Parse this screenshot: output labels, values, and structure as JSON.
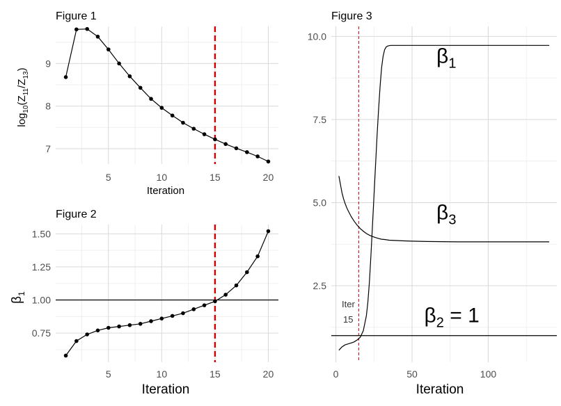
{
  "chart_data": [
    {
      "type": "line",
      "title": "Figure 1",
      "xlabel": "Iteration",
      "ylabel_parts": {
        "pre": "log",
        "sub1": "10",
        "mid": "(Z",
        "sub2": "11",
        "slash": "/Z",
        "sub3": "13",
        "post": ")"
      },
      "x": [
        1,
        2,
        3,
        4,
        5,
        6,
        7,
        8,
        9,
        10,
        11,
        12,
        13,
        14,
        15,
        16,
        17,
        18,
        19,
        20
      ],
      "y": [
        8.68,
        9.8,
        9.81,
        9.63,
        9.33,
        9.0,
        8.7,
        8.43,
        8.17,
        7.96,
        7.78,
        7.61,
        7.47,
        7.34,
        7.22,
        7.11,
        7.01,
        6.92,
        6.82,
        6.7
      ],
      "xlim": [
        0.05,
        20.95
      ],
      "ylim": [
        6.64,
        9.87
      ],
      "xticks": [
        5,
        10,
        15,
        20
      ],
      "yticks": [
        7,
        8,
        9
      ],
      "vline": {
        "x": 15,
        "color": "#cc0000",
        "style": "dashed"
      }
    },
    {
      "type": "line",
      "title": "Figure 2",
      "xlabel": "Iteration",
      "ylabel_parts": {
        "pre": "β",
        "sub1": "1"
      },
      "x": [
        1,
        2,
        3,
        4,
        5,
        6,
        7,
        8,
        9,
        10,
        11,
        12,
        13,
        14,
        15,
        16,
        17,
        18,
        19,
        20
      ],
      "y": [
        0.58,
        0.69,
        0.74,
        0.77,
        0.79,
        0.8,
        0.81,
        0.82,
        0.84,
        0.86,
        0.88,
        0.9,
        0.93,
        0.96,
        0.99,
        1.04,
        1.11,
        1.21,
        1.33,
        1.52
      ],
      "xlim": [
        0.05,
        20.95
      ],
      "ylim": [
        0.53,
        1.57
      ],
      "xticks": [
        5,
        10,
        15,
        20
      ],
      "yticks": [
        0.75,
        1.0,
        1.25,
        1.5
      ],
      "ytick_labels": [
        "0.75",
        "1.00",
        "1.25",
        "1.50"
      ],
      "hline": {
        "y": 1.0,
        "color": "#000000"
      },
      "vline": {
        "x": 15,
        "color": "#cc0000",
        "style": "dashed"
      }
    },
    {
      "type": "line",
      "title": "Figure 3",
      "xlabel": "Iteration",
      "xlim": [
        -3,
        145
      ],
      "ylim": [
        0.2,
        10.3
      ],
      "xticks": [
        0,
        50,
        100
      ],
      "yticks": [
        2.5,
        5.0,
        7.5,
        10.0
      ],
      "ytick_labels": [
        "2.5",
        "5.0",
        "7.5",
        "10.0"
      ],
      "series": [
        {
          "name": "β1",
          "x": [
            2,
            4,
            6,
            8,
            10,
            12,
            14,
            16,
            18,
            20,
            21,
            22,
            23,
            24,
            25,
            26,
            27,
            28,
            29,
            30,
            31,
            32,
            33,
            34,
            35,
            36,
            37,
            38,
            40,
            45,
            50,
            60,
            80,
            100,
            120,
            140
          ],
          "y": [
            0.56,
            0.66,
            0.72,
            0.75,
            0.78,
            0.81,
            0.87,
            0.95,
            1.15,
            1.6,
            2.0,
            2.6,
            3.4,
            4.3,
            5.2,
            6.1,
            7.0,
            7.8,
            8.5,
            9.05,
            9.4,
            9.6,
            9.68,
            9.71,
            9.72,
            9.73,
            9.73,
            9.73,
            9.73,
            9.73,
            9.73,
            9.73,
            9.73,
            9.73,
            9.73,
            9.73
          ]
        },
        {
          "name": "β3",
          "x": [
            2,
            3,
            4,
            5,
            6,
            7,
            8,
            10,
            12,
            14,
            16,
            18,
            20,
            22,
            24,
            26,
            28,
            30,
            32,
            35,
            40,
            45,
            50,
            60,
            80,
            100,
            120,
            140
          ],
          "y": [
            5.8,
            5.55,
            5.3,
            5.12,
            4.98,
            4.86,
            4.76,
            4.58,
            4.44,
            4.32,
            4.22,
            4.14,
            4.07,
            4.02,
            3.98,
            3.95,
            3.92,
            3.9,
            3.89,
            3.87,
            3.86,
            3.85,
            3.84,
            3.83,
            3.82,
            3.82,
            3.82,
            3.82
          ]
        },
        {
          "name": "β2 = 1",
          "x": [
            -3,
            145
          ],
          "y": [
            1.0,
            1.0
          ]
        }
      ],
      "labels": [
        {
          "main": "β",
          "sub": "1",
          "x": 66,
          "y": 9.2
        },
        {
          "main": "β",
          "sub": "3",
          "x": 66,
          "y": 4.5
        },
        {
          "main": "β",
          "sub": "2",
          "tail": " = 1",
          "x": 58,
          "y": 1.4
        }
      ],
      "vline": {
        "x": 15,
        "color": "#cc0000",
        "style": "dashed-thin"
      },
      "annotation": {
        "line1": "Iter",
        "line2": "15"
      }
    }
  ]
}
